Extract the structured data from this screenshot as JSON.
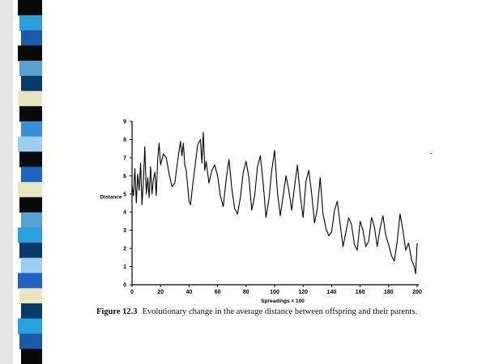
{
  "slide": {
    "stripe_colors": [
      "#0a0a0a",
      "#2aa0dc",
      "#1a5aa8",
      "#0a0a0a",
      "#58a2d2",
      "#0a3a6a",
      "#e8e6c0",
      "#0a0a0a",
      "#3a8ed2",
      "#9ad0ee",
      "#0a0a0a",
      "#1e64c0",
      "#e8e6c0",
      "#0a0a0a",
      "#58a2d2",
      "#2aa0dc",
      "#0a3a6a",
      "#9ad0ee",
      "#1e64c0",
      "#e8e6c0",
      "#0a3a6a",
      "#2aa0dc",
      "#1a5aa8",
      "#0a0a0a"
    ]
  },
  "figure": {
    "caption_number": "Figure 12.3",
    "caption_text": "Evolutionary change in the average distance between offspring and their parents."
  },
  "chart_data": {
    "type": "line",
    "xlabel": "Spreadings × 100",
    "ylabel": "Distance",
    "xlim": [
      0,
      200
    ],
    "ylim": [
      0,
      9
    ],
    "x_ticks": [
      0,
      20,
      40,
      60,
      80,
      100,
      120,
      140,
      160,
      180,
      200
    ],
    "y_ticks": [
      0,
      1,
      2,
      3,
      4,
      5,
      6,
      7,
      8,
      9
    ],
    "grid": false,
    "series": [
      {
        "x": [
          0,
          1,
          2,
          3,
          4,
          5,
          6,
          7,
          8,
          9,
          10,
          11,
          12,
          13,
          14,
          15,
          16,
          17,
          18,
          19,
          20,
          22,
          24,
          26,
          28,
          30,
          32,
          34,
          35,
          36,
          37,
          38,
          40,
          41,
          42,
          44,
          46,
          48,
          49,
          50,
          51,
          52,
          54,
          56,
          58,
          60,
          62,
          64,
          66,
          68,
          70,
          72,
          74,
          76,
          78,
          80,
          82,
          84,
          86,
          88,
          90,
          92,
          94,
          96,
          98,
          100,
          102,
          104,
          106,
          108,
          110,
          112,
          114,
          116,
          118,
          120,
          122,
          124,
          126,
          128,
          130,
          132,
          134,
          136,
          138,
          140,
          142,
          144,
          146,
          148,
          150,
          152,
          154,
          156,
          158,
          160,
          162,
          164,
          166,
          168,
          170,
          172,
          174,
          176,
          178,
          180,
          182,
          184,
          186,
          188,
          190,
          192,
          194,
          196,
          198,
          199,
          200
        ],
        "y": [
          5.5,
          4.9,
          6.4,
          4.5,
          6.1,
          5.2,
          6.7,
          4.4,
          5.8,
          7.6,
          5.0,
          5.9,
          4.8,
          6.5,
          5.0,
          5.8,
          6.2,
          4.9,
          6.9,
          7.8,
          6.6,
          7.2,
          7.0,
          6.1,
          5.4,
          5.6,
          6.8,
          7.9,
          7.1,
          7.8,
          6.6,
          6.3,
          4.6,
          4.4,
          5.1,
          6.4,
          7.7,
          8.0,
          6.7,
          8.4,
          6.3,
          6.8,
          5.6,
          6.3,
          6.6,
          6.0,
          4.9,
          4.3,
          5.8,
          6.9,
          5.3,
          4.2,
          3.9,
          4.8,
          6.2,
          6.8,
          5.9,
          4.1,
          4.9,
          6.5,
          7.1,
          5.6,
          3.7,
          4.7,
          6.3,
          7.4,
          5.1,
          3.8,
          4.9,
          6.0,
          5.2,
          4.1,
          5.4,
          6.6,
          4.9,
          3.7,
          5.7,
          6.3,
          5.0,
          3.4,
          4.2,
          5.9,
          3.9,
          3.1,
          2.7,
          2.9,
          4.1,
          4.6,
          3.3,
          2.1,
          2.9,
          3.7,
          3.3,
          2.2,
          1.9,
          3.5,
          3.0,
          2.1,
          2.4,
          3.7,
          3.2,
          2.1,
          3.1,
          3.8,
          2.7,
          2.2,
          1.6,
          1.3,
          2.4,
          3.9,
          3.0,
          1.9,
          2.3,
          1.4,
          1.0,
          0.6,
          2.3
        ]
      }
    ]
  }
}
